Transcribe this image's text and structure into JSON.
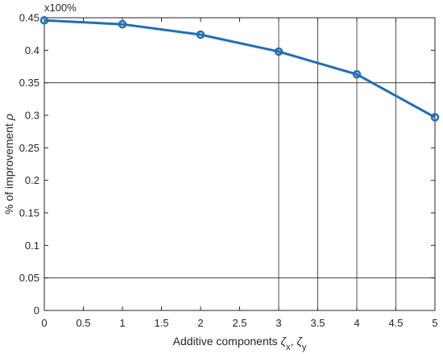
{
  "chart_data": {
    "type": "line",
    "exponent_label": "x100%",
    "xlabel": {
      "prefix": "Additive components ",
      "sym1": "ζ",
      "sub1": "x",
      "sep": ", ",
      "sym2": "ζ",
      "sub2": "y"
    },
    "ylabel": {
      "prefix": "% of improvement ",
      "sym": "ρ"
    },
    "xlim": [
      0,
      5
    ],
    "ylim": [
      0,
      0.45
    ],
    "xticks": [
      "0",
      "0.5",
      "1",
      "1.5",
      "2",
      "2.5",
      "3",
      "3.5",
      "4",
      "4.5",
      "5"
    ],
    "yticks": [
      "0",
      "0.05",
      "0.1",
      "0.15",
      "0.2",
      "0.25",
      "0.3",
      "0.35",
      "0.4",
      "0.45"
    ],
    "grid": "partial",
    "series": [
      {
        "x": [
          0,
          1,
          2,
          3,
          4,
          5
        ],
        "y": [
          0.446,
          0.44,
          0.424,
          0.398,
          0.363,
          0.297
        ],
        "color": "#1f6fb4",
        "marker": "circle"
      }
    ]
  }
}
